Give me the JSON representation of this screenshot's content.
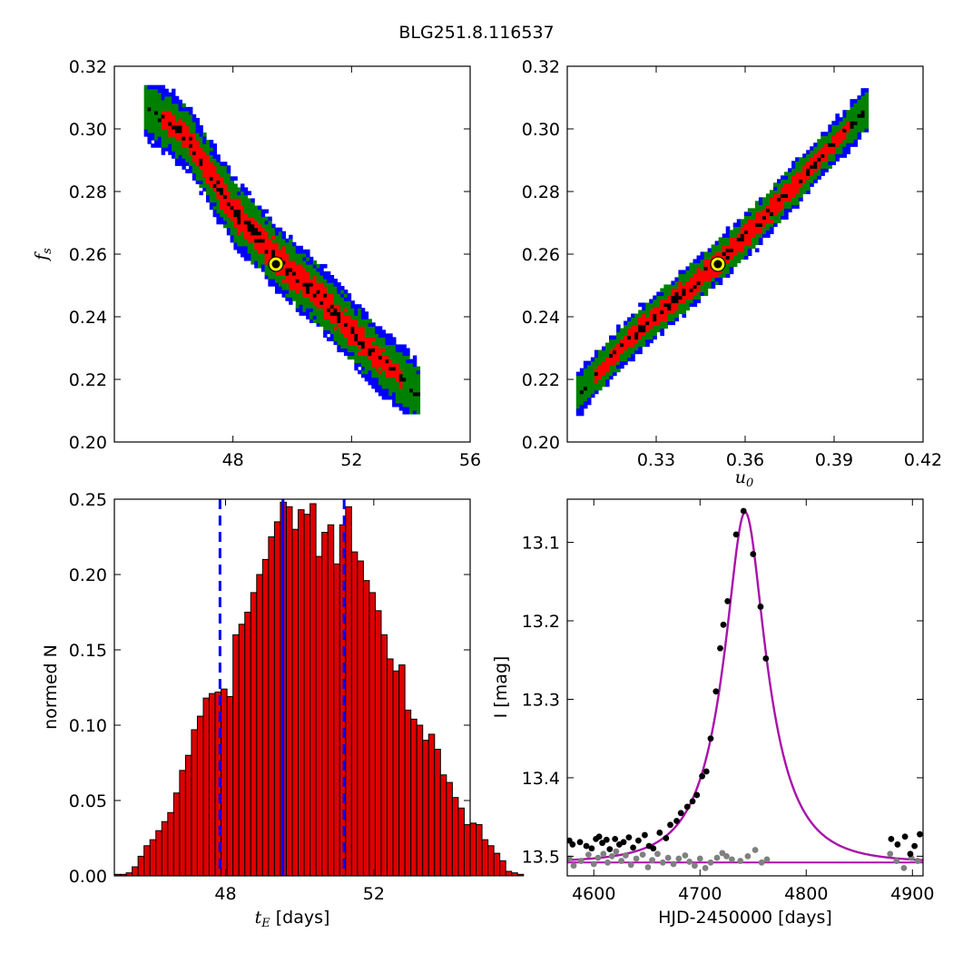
{
  "figure": {
    "title": "BLG251.8.116537",
    "colors": {
      "outer": "#0000ff",
      "mid": "#008000",
      "inner": "#ff0000",
      "core": "#000000",
      "marker_face": "#000000",
      "marker_edge": "#ffff00",
      "hist_fill": "#dd0000",
      "median_line": "#0000ff",
      "model_line": "#aa11aa",
      "gray_points": "#808080"
    }
  },
  "chart_data": [
    {
      "id": "tE_fs",
      "type": "heatmap",
      "xlabel": "",
      "ylabel_symbol": "f",
      "ylabel_sub": "s",
      "xlim": [
        44,
        56
      ],
      "ylim": [
        0.2,
        0.32
      ],
      "xticks": [
        "48",
        "52",
        "56"
      ],
      "yticks": [
        "0.20",
        "0.22",
        "0.24",
        "0.26",
        "0.28",
        "0.30",
        "0.32"
      ],
      "centerline": [
        [
          45.0,
          0.308
        ],
        [
          46.5,
          0.297
        ],
        [
          48.0,
          0.274
        ],
        [
          49.5,
          0.2585
        ],
        [
          51.0,
          0.246
        ],
        [
          52.5,
          0.2305
        ],
        [
          54.3,
          0.215
        ]
      ],
      "best_fit": [
        49.45,
        0.2568
      ]
    },
    {
      "id": "u0_fs",
      "type": "heatmap",
      "xlabel_symbol": "u",
      "xlabel_sub": "0",
      "xlim": [
        0.3,
        0.42
      ],
      "ylim": [
        0.2,
        0.32
      ],
      "xticks": [
        "0.33",
        "0.36",
        "0.39",
        "0.42"
      ],
      "yticks": [
        "0.20",
        "0.22",
        "0.24",
        "0.26",
        "0.28",
        "0.30",
        "0.32"
      ],
      "centerline": [
        [
          0.303,
          0.2145
        ],
        [
          0.32,
          0.232
        ],
        [
          0.335,
          0.2445
        ],
        [
          0.351,
          0.2575
        ],
        [
          0.365,
          0.2705
        ],
        [
          0.38,
          0.2855
        ],
        [
          0.4015,
          0.307
        ]
      ],
      "best_fit": [
        0.3508,
        0.2568
      ]
    },
    {
      "id": "tE_hist",
      "type": "bar",
      "xlabel_symbol": "t",
      "xlabel_sub": "E",
      "xlabel_text": " [days]",
      "ylabel": "normed N",
      "xlim": [
        45,
        54.6
      ],
      "ylim": [
        0,
        0.25
      ],
      "xticks": [
        "48",
        "52"
      ],
      "yticks": [
        "0.00",
        "0.05",
        "0.10",
        "0.15",
        "0.20",
        "0.25"
      ],
      "bin_start": 45.0,
      "bin_width": 0.16,
      "values": [
        0.001,
        0.001,
        0.002,
        0.006,
        0.013,
        0.02,
        0.024,
        0.03,
        0.036,
        0.042,
        0.055,
        0.07,
        0.08,
        0.097,
        0.106,
        0.118,
        0.121,
        0.122,
        0.124,
        0.119,
        0.16,
        0.167,
        0.175,
        0.188,
        0.2,
        0.21,
        0.225,
        0.235,
        0.248,
        0.245,
        0.23,
        0.243,
        0.24,
        0.247,
        0.212,
        0.228,
        0.233,
        0.207,
        0.233,
        0.245,
        0.215,
        0.209,
        0.196,
        0.188,
        0.176,
        0.16,
        0.144,
        0.136,
        0.14,
        0.11,
        0.104,
        0.1,
        0.09,
        0.094,
        0.084,
        0.067,
        0.062,
        0.052,
        0.045,
        0.034,
        0.035,
        0.034,
        0.024,
        0.02,
        0.015,
        0.01,
        0.003,
        0.002,
        0.001
      ],
      "median": 49.55,
      "lower_bound": 47.85,
      "upper_bound": 51.2
    },
    {
      "id": "light_curve",
      "type": "scatter",
      "xlabel": "HJD-2450000 [days]",
      "ylabel": "I [mag]",
      "xlim": [
        4575,
        4910
      ],
      "ylim": [
        13.525,
        13.045
      ],
      "xticks": [
        "4600",
        "4700",
        "4800",
        "4900"
      ],
      "yticks": [
        "13.1",
        "13.2",
        "13.3",
        "13.4",
        "13.5"
      ],
      "model": {
        "t0": 4742.5,
        "tE": 49.45,
        "u0": 0.3508,
        "fs": 0.2568,
        "baseline": 13.508
      },
      "points": [
        [
          4577,
          13.48
        ],
        [
          4580,
          13.485
        ],
        [
          4587,
          13.482
        ],
        [
          4593,
          13.487
        ],
        [
          4598,
          13.49
        ],
        [
          4602,
          13.478
        ],
        [
          4605,
          13.475
        ],
        [
          4608,
          13.483
        ],
        [
          4612,
          13.479
        ],
        [
          4615,
          13.491
        ],
        [
          4620,
          13.478
        ],
        [
          4624,
          13.485
        ],
        [
          4628,
          13.482
        ],
        [
          4633,
          13.476
        ],
        [
          4637,
          13.489
        ],
        [
          4642,
          13.48
        ],
        [
          4648,
          13.473
        ],
        [
          4652,
          13.487
        ],
        [
          4656,
          13.49
        ],
        [
          4662,
          13.47
        ],
        [
          4668,
          13.477
        ],
        [
          4672,
          13.46
        ],
        [
          4678,
          13.455
        ],
        [
          4682,
          13.445
        ],
        [
          4688,
          13.437
        ],
        [
          4693,
          13.43
        ],
        [
          4697,
          13.422
        ],
        [
          4702,
          13.398
        ],
        [
          4706,
          13.392
        ],
        [
          4710,
          13.35
        ],
        [
          4715,
          13.29
        ],
        [
          4719,
          13.235
        ],
        [
          4722,
          13.205
        ],
        [
          4726,
          13.175
        ],
        [
          4734,
          13.09
        ],
        [
          4741,
          13.06
        ],
        [
          4750,
          13.115
        ],
        [
          4757,
          13.182
        ],
        [
          4762,
          13.248
        ],
        [
          4880,
          13.478
        ],
        [
          4886,
          13.485
        ],
        [
          4893,
          13.475
        ],
        [
          4898,
          13.497
        ],
        [
          4902,
          13.487
        ],
        [
          4907,
          13.472
        ]
      ],
      "residual_points": [
        [
          4577,
          13.503
        ],
        [
          4581,
          13.512
        ],
        [
          4588,
          13.506
        ],
        [
          4595,
          13.498
        ],
        [
          4600,
          13.51
        ],
        [
          4604,
          13.502
        ],
        [
          4609,
          13.497
        ],
        [
          4613,
          13.508
        ],
        [
          4617,
          13.5
        ],
        [
          4621,
          13.494
        ],
        [
          4626,
          13.506
        ],
        [
          4630,
          13.499
        ],
        [
          4635,
          13.511
        ],
        [
          4640,
          13.503
        ],
        [
          4646,
          13.498
        ],
        [
          4651,
          13.514
        ],
        [
          4655,
          13.505
        ],
        [
          4660,
          13.497
        ],
        [
          4665,
          13.508
        ],
        [
          4670,
          13.502
        ],
        [
          4675,
          13.51
        ],
        [
          4680,
          13.503
        ],
        [
          4686,
          13.499
        ],
        [
          4690,
          13.507
        ],
        [
          4695,
          13.512
        ],
        [
          4700,
          13.503
        ],
        [
          4705,
          13.515
        ],
        [
          4710,
          13.508
        ],
        [
          4716,
          13.502
        ],
        [
          4721,
          13.496
        ],
        [
          4725,
          13.5
        ],
        [
          4730,
          13.504
        ],
        [
          4738,
          13.506
        ],
        [
          4745,
          13.5
        ],
        [
          4752,
          13.492
        ],
        [
          4758,
          13.508
        ],
        [
          4763,
          13.504
        ],
        [
          4879,
          13.497
        ],
        [
          4885,
          13.506
        ],
        [
          4892,
          13.515
        ],
        [
          4899,
          13.502
        ],
        [
          4905,
          13.506
        ]
      ]
    }
  ]
}
